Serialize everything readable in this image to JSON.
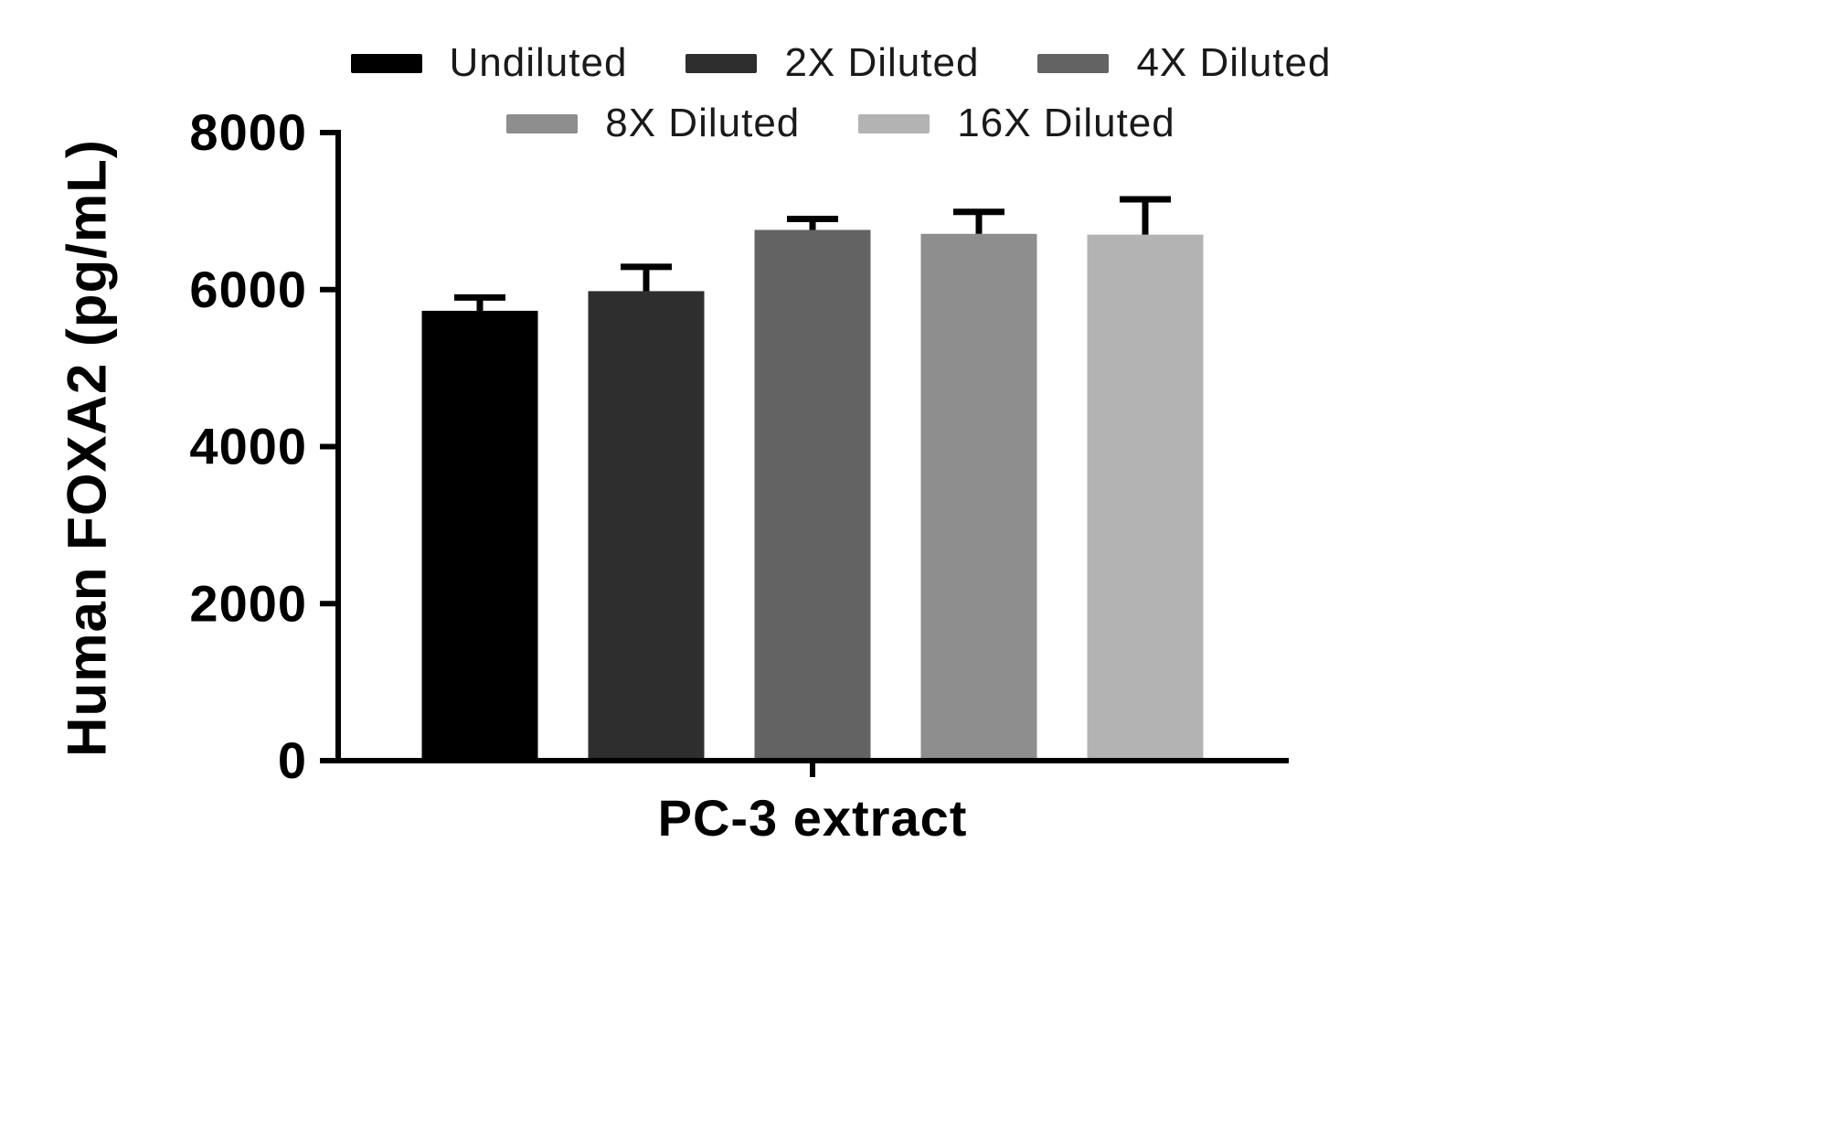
{
  "chart_data": {
    "type": "bar",
    "title": "",
    "xlabel": "PC-3 extract",
    "ylabel": "Human FOXA2 (pg/mL)",
    "ylim": [
      0,
      8000
    ],
    "yticks": [
      0,
      2000,
      4000,
      6000,
      8000
    ],
    "categories": [
      "PC-3 extract"
    ],
    "grid": false,
    "legend_position": "top",
    "error_bars": true,
    "series": [
      {
        "name": "Undiluted",
        "color": "#000000",
        "value": 5730,
        "error": 170
      },
      {
        "name": "2X Diluted",
        "color": "#2e2e2e",
        "value": 5980,
        "error": 310
      },
      {
        "name": "4X Diluted",
        "color": "#636363",
        "value": 6760,
        "error": 140
      },
      {
        "name": "8X Diluted",
        "color": "#8e8e8e",
        "value": 6710,
        "error": 280
      },
      {
        "name": "16X Diluted",
        "color": "#b3b3b3",
        "value": 6700,
        "error": 450
      }
    ]
  }
}
